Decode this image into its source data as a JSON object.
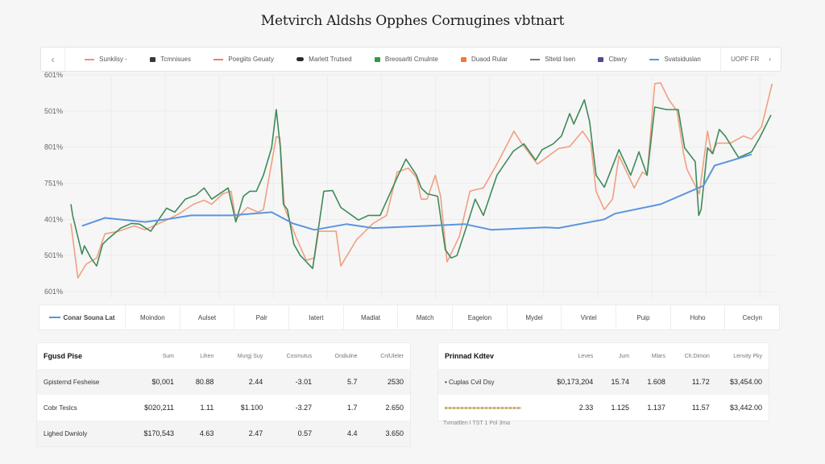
{
  "title": "Metvirch Aldshs Opphes Cornugines vbtnart",
  "legend": {
    "items": [
      {
        "label": "Sunkilsy -",
        "kind": "line",
        "color": "#f0937a"
      },
      {
        "label": "Tcmnisues",
        "kind": "square",
        "color": "#2f3a33"
      },
      {
        "label": "Poegiits Geuaty",
        "kind": "line",
        "color": "#f07c6a"
      },
      {
        "label": "Marlett Trutsed",
        "kind": "pill",
        "color": "#2a2a2a"
      },
      {
        "label": "Breosarlti Cmulnte",
        "kind": "square",
        "color": "#2e9a44"
      },
      {
        "label": "Duaod Rular",
        "kind": "square",
        "color": "#f0793a"
      },
      {
        "label": "Sltetd Isen",
        "kind": "line",
        "color": "#777777"
      },
      {
        "label": "Cbwry",
        "kind": "square",
        "color": "#4b4a8a"
      },
      {
        "label": "Svatsiduslan",
        "kind": "line",
        "color": "#5b95dd"
      }
    ],
    "right_label": "UOPF FR",
    "prev_icon": "chevron-left-icon",
    "next_icon": "chevron-right-icon"
  },
  "chart_data": {
    "type": "line",
    "grid": true,
    "legend_placement": "top",
    "ylim": [
      0,
      6
    ],
    "xlim": [
      0,
      12
    ],
    "yticks": [
      {
        "value": 6,
        "label": "601%"
      },
      {
        "value": 5,
        "label": "501%"
      },
      {
        "value": 4,
        "label": "801%"
      },
      {
        "value": 3,
        "label": "751%"
      },
      {
        "value": 2,
        "label": "401%"
      },
      {
        "value": 1,
        "label": "501%"
      },
      {
        "value": 0,
        "label": "601%"
      }
    ],
    "series": [
      {
        "color": "#f0a080",
        "points": [
          [
            0,
            1.89
          ],
          [
            0.12,
            0.38
          ],
          [
            0.26,
            0.76
          ],
          [
            0.44,
            0.93
          ],
          [
            0.58,
            1.6
          ],
          [
            0.81,
            1.67
          ],
          [
            1.08,
            1.82
          ],
          [
            1.26,
            1.71
          ],
          [
            1.63,
            1.98
          ],
          [
            1.85,
            2.16
          ],
          [
            2.09,
            2.42
          ],
          [
            2.27,
            2.53
          ],
          [
            2.4,
            2.42
          ],
          [
            2.59,
            2.71
          ],
          [
            2.73,
            2.78
          ],
          [
            2.81,
            2.0
          ],
          [
            3.01,
            2.33
          ],
          [
            3.19,
            2.2
          ],
          [
            3.28,
            2.27
          ],
          [
            3.5,
            4.29
          ],
          [
            3.56,
            4.27
          ],
          [
            3.64,
            2.33
          ],
          [
            3.83,
            1.53
          ],
          [
            4.01,
            0.87
          ],
          [
            4.15,
            0.93
          ],
          [
            4.22,
            1.67
          ],
          [
            4.52,
            1.67
          ],
          [
            4.6,
            0.71
          ],
          [
            4.87,
            1.44
          ],
          [
            5.15,
            1.89
          ],
          [
            5.38,
            2.11
          ],
          [
            5.56,
            3.31
          ],
          [
            5.75,
            3.42
          ],
          [
            5.89,
            3.16
          ],
          [
            5.97,
            2.56
          ],
          [
            6.07,
            2.56
          ],
          [
            6.21,
            3.22
          ],
          [
            6.3,
            2.64
          ],
          [
            6.41,
            0.82
          ],
          [
            6.62,
            1.53
          ],
          [
            6.8,
            2.78
          ],
          [
            6.89,
            2.82
          ],
          [
            7.03,
            2.87
          ],
          [
            7.26,
            3.53
          ],
          [
            7.55,
            4.44
          ],
          [
            7.68,
            4.11
          ],
          [
            7.95,
            3.53
          ],
          [
            8.31,
            3.96
          ],
          [
            8.5,
            4.02
          ],
          [
            8.72,
            4.44
          ],
          [
            8.86,
            4.11
          ],
          [
            8.95,
            2.78
          ],
          [
            9.09,
            2.27
          ],
          [
            9.23,
            2.56
          ],
          [
            9.34,
            3.76
          ],
          [
            9.6,
            2.87
          ],
          [
            9.74,
            3.31
          ],
          [
            9.82,
            3.22
          ],
          [
            9.95,
            5.76
          ],
          [
            10.05,
            5.78
          ],
          [
            10.19,
            5.31
          ],
          [
            10.33,
            5.0
          ],
          [
            10.44,
            3.82
          ],
          [
            10.5,
            3.38
          ],
          [
            10.71,
            2.71
          ],
          [
            10.85,
            4.44
          ],
          [
            10.92,
            3.82
          ],
          [
            11.01,
            4.11
          ],
          [
            11.24,
            4.11
          ],
          [
            11.46,
            4.31
          ],
          [
            11.6,
            4.22
          ],
          [
            11.77,
            4.56
          ],
          [
            11.95,
            5.76
          ]
        ]
      },
      {
        "color": "#3f8a5a",
        "points": [
          [
            0,
            2.42
          ],
          [
            0.03,
            2.11
          ],
          [
            0.19,
            1.04
          ],
          [
            0.23,
            1.27
          ],
          [
            0.34,
            0.93
          ],
          [
            0.44,
            0.71
          ],
          [
            0.54,
            1.31
          ],
          [
            0.62,
            1.44
          ],
          [
            0.85,
            1.76
          ],
          [
            1.03,
            1.89
          ],
          [
            1.17,
            1.87
          ],
          [
            1.36,
            1.67
          ],
          [
            1.63,
            2.31
          ],
          [
            1.77,
            2.2
          ],
          [
            1.95,
            2.56
          ],
          [
            2.13,
            2.67
          ],
          [
            2.27,
            2.87
          ],
          [
            2.4,
            2.56
          ],
          [
            2.68,
            2.87
          ],
          [
            2.81,
            1.93
          ],
          [
            2.94,
            2.64
          ],
          [
            3.05,
            2.78
          ],
          [
            3.16,
            2.78
          ],
          [
            3.28,
            3.22
          ],
          [
            3.42,
            3.98
          ],
          [
            3.5,
            5.04
          ],
          [
            3.57,
            3.98
          ],
          [
            3.62,
            2.42
          ],
          [
            3.69,
            2.27
          ],
          [
            3.8,
            1.31
          ],
          [
            3.91,
            1.0
          ],
          [
            4.12,
            0.64
          ],
          [
            4.31,
            2.78
          ],
          [
            4.46,
            2.8
          ],
          [
            4.6,
            2.33
          ],
          [
            4.9,
            1.98
          ],
          [
            5.07,
            2.11
          ],
          [
            5.27,
            2.11
          ],
          [
            5.56,
            3.16
          ],
          [
            5.71,
            3.67
          ],
          [
            5.89,
            3.22
          ],
          [
            5.97,
            2.87
          ],
          [
            6.07,
            2.71
          ],
          [
            6.25,
            2.64
          ],
          [
            6.38,
            1.16
          ],
          [
            6.48,
            0.93
          ],
          [
            6.58,
            1.0
          ],
          [
            6.76,
            1.89
          ],
          [
            6.89,
            2.56
          ],
          [
            7.03,
            2.11
          ],
          [
            7.26,
            3.22
          ],
          [
            7.54,
            3.89
          ],
          [
            7.72,
            4.09
          ],
          [
            7.92,
            3.64
          ],
          [
            8.03,
            3.93
          ],
          [
            8.22,
            4.09
          ],
          [
            8.36,
            4.31
          ],
          [
            8.5,
            4.93
          ],
          [
            8.57,
            4.64
          ],
          [
            8.75,
            5.31
          ],
          [
            8.84,
            4.71
          ],
          [
            8.95,
            3.22
          ],
          [
            9.09,
            2.89
          ],
          [
            9.34,
            3.93
          ],
          [
            9.54,
            3.22
          ],
          [
            9.68,
            3.87
          ],
          [
            9.82,
            3.22
          ],
          [
            9.95,
            5.11
          ],
          [
            10.15,
            5.04
          ],
          [
            10.35,
            5.04
          ],
          [
            10.46,
            3.98
          ],
          [
            10.64,
            3.6
          ],
          [
            10.7,
            2.11
          ],
          [
            10.74,
            2.27
          ],
          [
            10.85,
            3.98
          ],
          [
            10.94,
            3.82
          ],
          [
            11.05,
            4.49
          ],
          [
            11.15,
            4.31
          ],
          [
            11.38,
            3.71
          ],
          [
            11.6,
            3.87
          ],
          [
            11.74,
            4.27
          ],
          [
            11.93,
            4.89
          ]
        ]
      },
      {
        "color": "#5b95dd",
        "points": [
          [
            0.19,
            1.82
          ],
          [
            0.58,
            2.04
          ],
          [
            0.95,
            1.98
          ],
          [
            1.26,
            1.93
          ],
          [
            1.63,
            2.0
          ],
          [
            2.05,
            2.11
          ],
          [
            2.73,
            2.11
          ],
          [
            3.42,
            2.2
          ],
          [
            3.78,
            1.89
          ],
          [
            4.15,
            1.71
          ],
          [
            4.7,
            1.87
          ],
          [
            5.15,
            1.76
          ],
          [
            6.07,
            1.82
          ],
          [
            6.71,
            1.87
          ],
          [
            7.17,
            1.71
          ],
          [
            8.09,
            1.78
          ],
          [
            8.31,
            1.76
          ],
          [
            9.09,
            2.0
          ],
          [
            9.27,
            2.16
          ],
          [
            10.05,
            2.42
          ],
          [
            10.78,
            2.93
          ],
          [
            10.97,
            3.49
          ],
          [
            11.42,
            3.71
          ],
          [
            11.6,
            3.8
          ]
        ]
      }
    ]
  },
  "strip": {
    "first_label": "Conar Souna Lat",
    "cells": [
      "Moindon",
      "Aulset",
      "Palr",
      "Iatert",
      "Madlat",
      "Match",
      "Eagelon",
      "Mydel",
      "Vintel",
      "Puip",
      "Hoho",
      "Ceclyn"
    ]
  },
  "left_table": {
    "title": "Fgusd Pise",
    "columns": [
      "Sum",
      "Lihen",
      "Murgj Suy",
      "Cosmutus",
      "Ondiulne",
      "CnlUleler"
    ],
    "rows": [
      [
        "Gpisternd Fesheise",
        "$0,001",
        "80.88",
        "2.44",
        "-3.01",
        "5.7",
        "2530"
      ],
      [
        "Cobr Teslcs",
        "$020,211",
        "1.11",
        "$1.100",
        "-3.27",
        "1.7",
        "2.650"
      ],
      [
        "Lighed Dwnloly",
        "$170,543",
        "4.63",
        "2.47",
        "0.57",
        "4.4",
        "3.650"
      ]
    ]
  },
  "right_table": {
    "title": "Prinnad Kdtev",
    "columns": [
      "Leves",
      "Jum",
      "Mlars",
      "Ch.Dimon",
      "Lenvity Pky"
    ],
    "rows": [
      [
        "Cuplas Cvil Dsy",
        "$0,173,204",
        "15.74",
        "1.608",
        "11.72",
        "$3,454.00"
      ],
      [
        "",
        "2.33",
        "1.125",
        "1.137",
        "11.57",
        "$3,442.00"
      ]
    ],
    "footer": "Tvmattlen I TST 1 Pol 3ma"
  }
}
